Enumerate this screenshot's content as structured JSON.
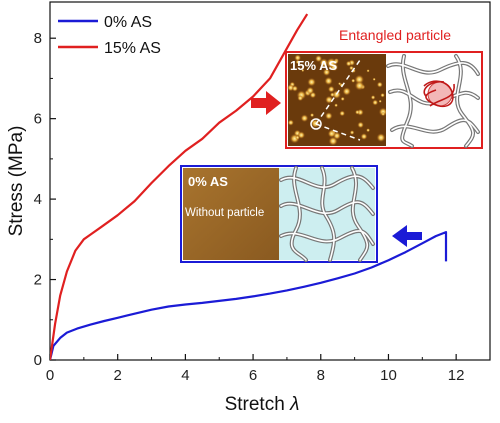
{
  "chart_data": {
    "type": "line",
    "xlabel": "Stretch",
    "xlabel_symbol": "λ",
    "ylabel": "Stress (MPa)",
    "xlim": [
      0,
      13
    ],
    "ylim": [
      0,
      8.9
    ],
    "xticks": [
      0,
      2,
      4,
      6,
      8,
      10,
      12
    ],
    "yticks": [
      0,
      2,
      4,
      6,
      8
    ],
    "grid": false,
    "legend_position": "top-left",
    "series": [
      {
        "name": "0% AS",
        "color": "#1b1bd6",
        "x": [
          0,
          0.1,
          0.3,
          0.5,
          0.8,
          1.2,
          1.6,
          2.0,
          2.5,
          3.0,
          3.5,
          4.0,
          4.5,
          5.0,
          5.5,
          6.0,
          6.5,
          7.0,
          7.5,
          8.0,
          8.5,
          9.0,
          9.5,
          10.0,
          10.5,
          11.0,
          11.4,
          11.7,
          11.7
        ],
        "y": [
          0,
          0.35,
          0.55,
          0.68,
          0.78,
          0.88,
          0.97,
          1.05,
          1.15,
          1.25,
          1.33,
          1.38,
          1.42,
          1.47,
          1.52,
          1.58,
          1.65,
          1.73,
          1.82,
          1.92,
          2.03,
          2.15,
          2.3,
          2.48,
          2.68,
          2.9,
          3.08,
          3.18,
          2.45
        ]
      },
      {
        "name": "15% AS",
        "color": "#e02020",
        "x": [
          0,
          0.15,
          0.3,
          0.5,
          0.75,
          1.0,
          1.2,
          1.5,
          2.0,
          2.5,
          3.0,
          3.5,
          4.0,
          4.5,
          5.0,
          5.5,
          6.0,
          6.5,
          7.0,
          7.3,
          7.6
        ],
        "y": [
          0,
          0.9,
          1.6,
          2.2,
          2.72,
          3.0,
          3.12,
          3.3,
          3.6,
          3.95,
          4.4,
          4.82,
          5.2,
          5.5,
          5.9,
          6.2,
          6.55,
          7.0,
          7.75,
          8.2,
          8.6
        ]
      }
    ]
  },
  "insets": {
    "entangled": {
      "caption": "Entangled particle",
      "label": "15% AS",
      "frame_color": "#e02020"
    },
    "without": {
      "label": "0% AS",
      "sublabel": "Without particle",
      "frame_color": "#1b1bd6"
    }
  }
}
